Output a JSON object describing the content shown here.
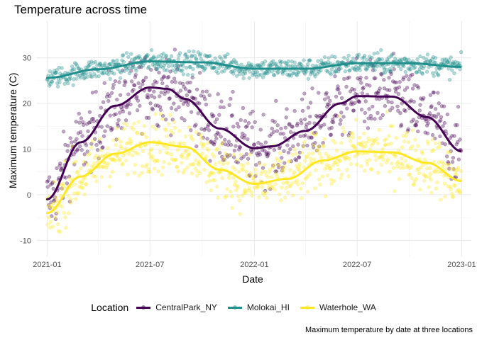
{
  "chart_data": {
    "type": "scatter",
    "title": "Temperature across time",
    "xlabel": "Date",
    "ylabel": "Maximum temperature (C)",
    "caption": "Maximum temperature by date at three locations",
    "legend_title": "Location",
    "legend_position": "bottom",
    "grid": true,
    "x_range": [
      "2020-12-14",
      "2023-01-18"
    ],
    "ylim": [
      -13.5,
      38
    ],
    "x_ticks": [
      "2021-01",
      "2021-07",
      "2022-01",
      "2022-07",
      "2023-01"
    ],
    "y_ticks": [
      -10,
      0,
      10,
      20,
      30
    ],
    "series": [
      {
        "name": "CentralPark_NY",
        "color": "#440154",
        "smooth": [
          [
            "2021-01-01",
            -1.0
          ],
          [
            "2021-03-01",
            11.5
          ],
          [
            "2021-05-01",
            19.5
          ],
          [
            "2021-07-01",
            23.5
          ],
          [
            "2021-08-01",
            23.2
          ],
          [
            "2021-09-01",
            21.0
          ],
          [
            "2021-11-01",
            14.5
          ],
          [
            "2022-01-01",
            10.2
          ],
          [
            "2022-02-01",
            10.6
          ],
          [
            "2022-04-01",
            14.0
          ],
          [
            "2022-06-01",
            20.0
          ],
          [
            "2022-07-01",
            21.6
          ],
          [
            "2022-09-01",
            21.5
          ],
          [
            "2022-11-01",
            17.0
          ],
          [
            "2023-01-01",
            9.5
          ]
        ],
        "points": {
          "mean_range": [
            -1,
            24
          ],
          "amplitude": 13.5,
          "noise": 5.5,
          "min": -6,
          "max": 36
        }
      },
      {
        "name": "Molokai_HI",
        "color": "#21908C",
        "smooth": [
          [
            "2021-01-01",
            25.6
          ],
          [
            "2021-04-01",
            27.5
          ],
          [
            "2021-07-01",
            29.2
          ],
          [
            "2021-10-01",
            29.0
          ],
          [
            "2022-01-01",
            27.6
          ],
          [
            "2022-04-01",
            27.6
          ],
          [
            "2022-07-01",
            28.8
          ],
          [
            "2022-10-01",
            28.8
          ],
          [
            "2023-01-01",
            28.0
          ]
        ],
        "points": {
          "mean_range": [
            26,
            30
          ],
          "amplitude": 2.0,
          "noise": 1.6,
          "min": 22,
          "max": 34
        }
      },
      {
        "name": "Waterhole_WA",
        "color": "#FDE725",
        "smooth": [
          [
            "2021-01-01",
            -4.0
          ],
          [
            "2021-03-01",
            4.0
          ],
          [
            "2021-05-01",
            9.0
          ],
          [
            "2021-07-01",
            11.5
          ],
          [
            "2021-09-01",
            10.5
          ],
          [
            "2021-11-01",
            5.5
          ],
          [
            "2022-01-01",
            2.4
          ],
          [
            "2022-03-01",
            3.5
          ],
          [
            "2022-05-01",
            7.5
          ],
          [
            "2022-07-01",
            9.5
          ],
          [
            "2022-09-01",
            9.3
          ],
          [
            "2022-11-01",
            7.0
          ],
          [
            "2023-01-01",
            3.0
          ]
        ],
        "points": {
          "mean_range": [
            -3,
            12
          ],
          "amplitude": 7.5,
          "noise": 4.5,
          "min": -9.5,
          "max": 26
        }
      }
    ]
  }
}
